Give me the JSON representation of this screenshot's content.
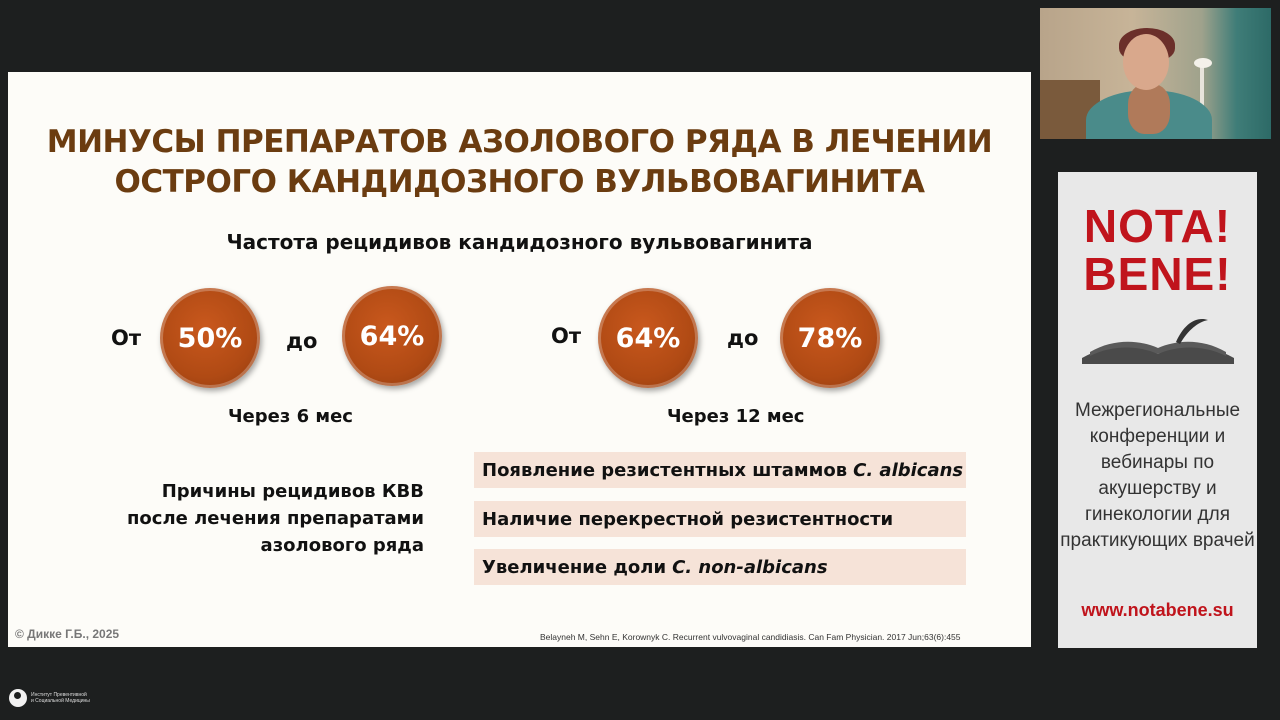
{
  "slide": {
    "title_line1": "МИНУСЫ ПРЕПАРАТОВ АЗОЛОВОГО РЯДА В ЛЕЧЕНИИ",
    "title_line2": "ОСТРОГО КАНДИДОЗНОГО ВУЛЬВОВАГИНИТА",
    "subtitle": "Частота рецидивов кандидозного вульвовагинита",
    "group1": {
      "from": "От",
      "to": "до",
      "value1": "50%",
      "value2": "64%",
      "period": "Через 6 мес"
    },
    "group2": {
      "from": "От",
      "to": "до",
      "value1": "64%",
      "value2": "78%",
      "period": "Через 12 мес"
    },
    "causes_line1": "Причины рецидивов КВВ",
    "causes_line2": "после лечения препаратами",
    "causes_line3": "азолового ряда",
    "reasons": [
      {
        "text": "Появление резистентных штаммов",
        "italic": "C. albicans"
      },
      {
        "text": "Наличие перекрестной резистентности",
        "italic": ""
      },
      {
        "text": "Увеличение доли",
        "italic": "C. non-albicans"
      }
    ],
    "copyright": "© Дикке Г.Б., 2025",
    "citation": "Belayneh M, Sehn E, Korownyk C. Recurrent vulvovaginal candidiasis. Can Fam Physician. 2017 Jun;63(6):455"
  },
  "ad": {
    "logo_line1": "NOTA",
    "logo_line2": "BENE",
    "description": "Межрегиональные конференции и вебинары по акушерству и гинекологии для практикующих врачей",
    "url": "www.notabene.su"
  },
  "institute": {
    "line1": "Институт Превентивной",
    "line2": "и Социальной Медицины"
  },
  "colors": {
    "title": "#6b3c10",
    "circle": "#b04a14",
    "reason_bg": "#f6e3d8",
    "brand_red": "#c0141c"
  }
}
